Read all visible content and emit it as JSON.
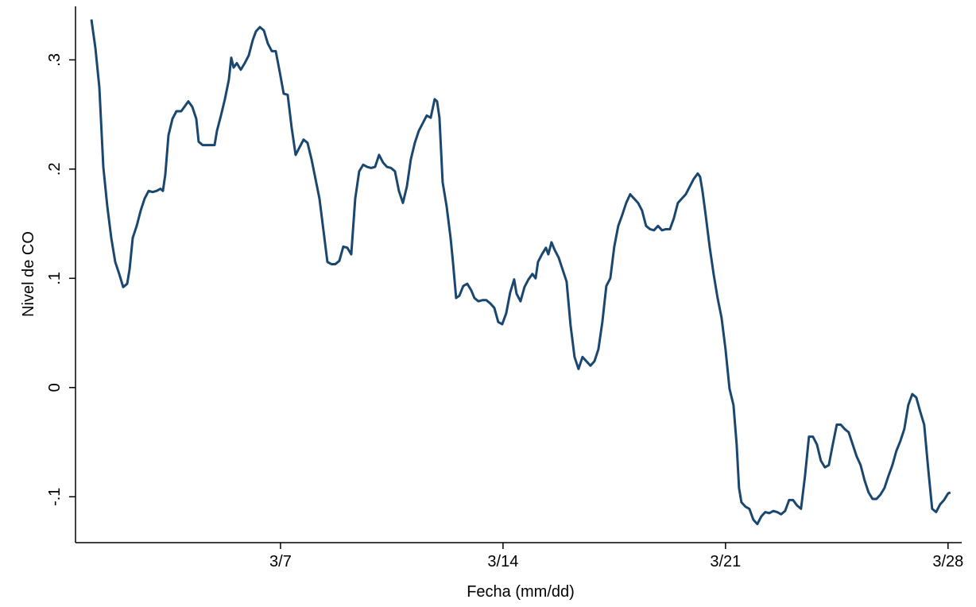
{
  "chart_data": {
    "type": "line",
    "xlabel": "Fecha (mm/dd)",
    "ylabel": "Nivel de CO",
    "color": "#1a476f",
    "x": [
      1.05,
      1.175,
      1.3,
      1.425,
      1.55,
      1.675,
      1.8,
      1.925,
      2.05,
      2.175,
      2.25,
      2.35,
      2.475,
      2.6,
      2.725,
      2.85,
      2.975,
      3.1,
      3.225,
      3.3,
      3.375,
      3.475,
      3.6,
      3.725,
      3.875,
      3.975,
      4.1,
      4.225,
      4.35,
      4.425,
      4.55,
      4.675,
      4.8,
      4.925,
      5.0,
      5.125,
      5.25,
      5.375,
      5.45,
      5.525,
      5.625,
      5.75,
      5.875,
      6.0,
      6.125,
      6.225,
      6.35,
      6.475,
      6.6,
      6.725,
      6.85,
      6.975,
      7.1,
      7.225,
      7.35,
      7.475,
      7.6,
      7.725,
      7.85,
      7.975,
      8.1,
      8.225,
      8.35,
      8.475,
      8.6,
      8.725,
      8.85,
      8.975,
      9.1,
      9.225,
      9.35,
      9.475,
      9.6,
      9.725,
      9.85,
      9.975,
      10.1,
      10.225,
      10.35,
      10.475,
      10.6,
      10.725,
      10.85,
      10.975,
      11.1,
      11.225,
      11.35,
      11.475,
      11.6,
      11.725,
      11.85,
      11.925,
      12.0,
      12.1,
      12.225,
      12.35,
      12.425,
      12.525,
      12.625,
      12.75,
      12.875,
      13.0,
      13.1,
      13.225,
      13.35,
      13.475,
      13.6,
      13.725,
      13.85,
      13.975,
      14.1,
      14.225,
      14.35,
      14.425,
      14.55,
      14.675,
      14.8,
      14.925,
      15.025,
      15.1,
      15.225,
      15.35,
      15.425,
      15.525,
      15.625,
      15.75,
      15.875,
      16.0,
      16.125,
      16.25,
      16.375,
      16.5,
      16.625,
      16.75,
      16.875,
      17.0,
      17.125,
      17.25,
      17.375,
      17.5,
      17.625,
      17.75,
      17.875,
      18.0,
      18.125,
      18.25,
      18.375,
      18.5,
      18.625,
      18.75,
      18.875,
      19.0,
      19.125,
      19.25,
      19.375,
      19.5,
      19.625,
      19.75,
      19.875,
      20.0,
      20.125,
      20.2,
      20.275,
      20.375,
      20.5,
      20.625,
      20.75,
      20.875,
      21.0,
      21.125,
      21.25,
      21.35,
      21.425,
      21.5,
      21.625,
      21.75,
      21.875,
      22.0,
      22.125,
      22.25,
      22.375,
      22.5,
      22.625,
      22.75,
      22.875,
      23.0,
      23.125,
      23.25,
      23.375,
      23.5,
      23.625,
      23.75,
      23.875,
      24.0,
      24.125,
      24.25,
      24.375,
      24.5,
      24.625,
      24.75,
      24.875,
      25.0,
      25.125,
      25.25,
      25.375,
      25.5,
      25.625,
      25.75,
      25.875,
      26.0,
      26.125,
      26.25,
      26.375,
      26.5,
      26.625,
      26.75,
      26.875,
      27.0,
      27.125,
      27.25,
      27.375,
      27.5,
      27.625,
      27.75,
      27.875,
      28.0,
      28.075
    ],
    "values": [
      0.337,
      0.311,
      0.275,
      0.202,
      0.166,
      0.137,
      0.115,
      0.104,
      0.092,
      0.095,
      0.108,
      0.137,
      0.148,
      0.162,
      0.173,
      0.18,
      0.179,
      0.18,
      0.182,
      0.18,
      0.195,
      0.231,
      0.246,
      0.253,
      0.253,
      0.257,
      0.262,
      0.257,
      0.246,
      0.225,
      0.222,
      0.222,
      0.222,
      0.222,
      0.235,
      0.249,
      0.264,
      0.282,
      0.302,
      0.293,
      0.297,
      0.291,
      0.297,
      0.304,
      0.318,
      0.326,
      0.33,
      0.327,
      0.315,
      0.308,
      0.308,
      0.289,
      0.269,
      0.268,
      0.238,
      0.213,
      0.22,
      0.227,
      0.224,
      0.209,
      0.191,
      0.173,
      0.144,
      0.115,
      0.113,
      0.113,
      0.116,
      0.129,
      0.128,
      0.122,
      0.173,
      0.198,
      0.204,
      0.202,
      0.201,
      0.202,
      0.213,
      0.206,
      0.202,
      0.201,
      0.198,
      0.18,
      0.169,
      0.184,
      0.209,
      0.224,
      0.235,
      0.242,
      0.249,
      0.247,
      0.264,
      0.262,
      0.247,
      0.188,
      0.166,
      0.137,
      0.115,
      0.082,
      0.084,
      0.093,
      0.095,
      0.089,
      0.082,
      0.079,
      0.08,
      0.08,
      0.077,
      0.073,
      0.06,
      0.058,
      0.068,
      0.087,
      0.099,
      0.086,
      0.079,
      0.092,
      0.099,
      0.104,
      0.1,
      0.115,
      0.122,
      0.128,
      0.122,
      0.133,
      0.126,
      0.119,
      0.108,
      0.097,
      0.057,
      0.028,
      0.017,
      0.028,
      0.024,
      0.02,
      0.024,
      0.035,
      0.06,
      0.093,
      0.1,
      0.129,
      0.148,
      0.158,
      0.169,
      0.177,
      0.173,
      0.169,
      0.162,
      0.148,
      0.145,
      0.144,
      0.148,
      0.144,
      0.145,
      0.145,
      0.155,
      0.169,
      0.173,
      0.177,
      0.184,
      0.191,
      0.196,
      0.193,
      0.18,
      0.158,
      0.129,
      0.104,
      0.082,
      0.064,
      0.035,
      -0.001,
      -0.016,
      -0.052,
      -0.092,
      -0.105,
      -0.109,
      -0.111,
      -0.121,
      -0.125,
      -0.118,
      -0.114,
      -0.115,
      -0.113,
      -0.114,
      -0.116,
      -0.113,
      -0.103,
      -0.103,
      -0.108,
      -0.111,
      -0.081,
      -0.045,
      -0.045,
      -0.052,
      -0.067,
      -0.073,
      -0.071,
      -0.052,
      -0.034,
      -0.034,
      -0.038,
      -0.041,
      -0.052,
      -0.063,
      -0.071,
      -0.085,
      -0.096,
      -0.102,
      -0.102,
      -0.098,
      -0.092,
      -0.081,
      -0.071,
      -0.058,
      -0.049,
      -0.038,
      -0.016,
      -0.006,
      -0.009,
      -0.022,
      -0.034,
      -0.074,
      -0.111,
      -0.114,
      -0.107,
      -0.103,
      -0.097,
      -0.096
    ],
    "xlim": [
      0.55,
      28.43
    ],
    "xticks": [
      {
        "value": 7,
        "label": "3/7"
      },
      {
        "value": 14,
        "label": "3/14"
      },
      {
        "value": 21,
        "label": "3/21"
      },
      {
        "value": 28,
        "label": "3/28"
      }
    ],
    "ylim": [
      -0.142,
      0.349
    ],
    "yticks": [
      {
        "value": -0.1,
        "label": "-.1"
      },
      0,
      {
        "value": 0.1,
        "label": ".1"
      },
      {
        "value": 0.2,
        "label": ".2"
      },
      {
        "value": 0.3,
        "label": ".3"
      }
    ],
    "grid": false
  }
}
